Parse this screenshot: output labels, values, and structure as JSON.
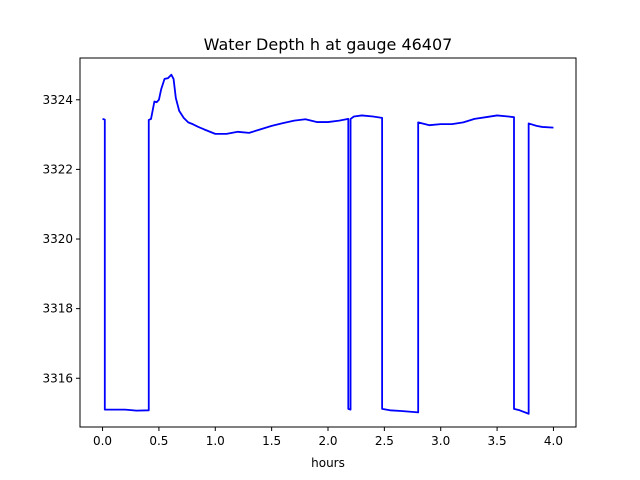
{
  "chart_data": {
    "type": "line",
    "title": "Water Depth h at gauge 46407",
    "xlabel": "hours",
    "ylabel": "",
    "xlim": [
      -0.2,
      4.2
    ],
    "ylim": [
      3314.6,
      3325.2
    ],
    "xticks": [
      0.0,
      0.5,
      1.0,
      1.5,
      2.0,
      2.5,
      3.0,
      3.5,
      4.0
    ],
    "xtick_labels": [
      "0.0",
      "0.5",
      "1.0",
      "1.5",
      "2.0",
      "2.5",
      "3.0",
      "3.5",
      "4.0"
    ],
    "yticks": [
      3316,
      3318,
      3320,
      3322,
      3324
    ],
    "ytick_labels": [
      "3316",
      "3318",
      "3320",
      "3322",
      "3324"
    ],
    "grid": false,
    "series": [
      {
        "color": "#0000ff",
        "x": [
          0.0,
          0.02,
          0.02,
          0.1,
          0.2,
          0.3,
          0.41,
          0.41,
          0.43,
          0.46,
          0.48,
          0.5,
          0.52,
          0.55,
          0.58,
          0.61,
          0.63,
          0.65,
          0.68,
          0.72,
          0.76,
          0.8,
          0.85,
          0.9,
          1.0,
          1.1,
          1.2,
          1.3,
          1.4,
          1.5,
          1.6,
          1.7,
          1.8,
          1.9,
          2.0,
          2.1,
          2.18,
          2.18,
          2.2,
          2.2,
          2.23,
          2.3,
          2.4,
          2.48,
          2.48,
          2.55,
          2.65,
          2.8,
          2.8,
          2.9,
          3.0,
          3.1,
          3.2,
          3.3,
          3.4,
          3.5,
          3.6,
          3.65,
          3.65,
          3.7,
          3.78,
          3.78,
          3.85,
          3.9,
          4.0
        ],
        "y": [
          3323.45,
          3323.43,
          3315.1,
          3315.1,
          3315.1,
          3315.07,
          3315.08,
          3323.42,
          3323.45,
          3323.95,
          3323.93,
          3324.0,
          3324.3,
          3324.6,
          3324.62,
          3324.72,
          3324.6,
          3324.05,
          3323.68,
          3323.48,
          3323.35,
          3323.3,
          3323.22,
          3323.15,
          3323.02,
          3323.02,
          3323.08,
          3323.05,
          3323.15,
          3323.25,
          3323.33,
          3323.4,
          3323.44,
          3323.36,
          3323.36,
          3323.4,
          3323.45,
          3315.12,
          3315.1,
          3323.45,
          3323.52,
          3323.55,
          3323.52,
          3323.48,
          3315.12,
          3315.08,
          3315.06,
          3315.02,
          3323.35,
          3323.27,
          3323.3,
          3323.3,
          3323.35,
          3323.45,
          3323.5,
          3323.55,
          3323.52,
          3323.5,
          3315.12,
          3315.08,
          3314.98,
          3323.32,
          3323.25,
          3323.22,
          3323.2
        ]
      }
    ]
  }
}
